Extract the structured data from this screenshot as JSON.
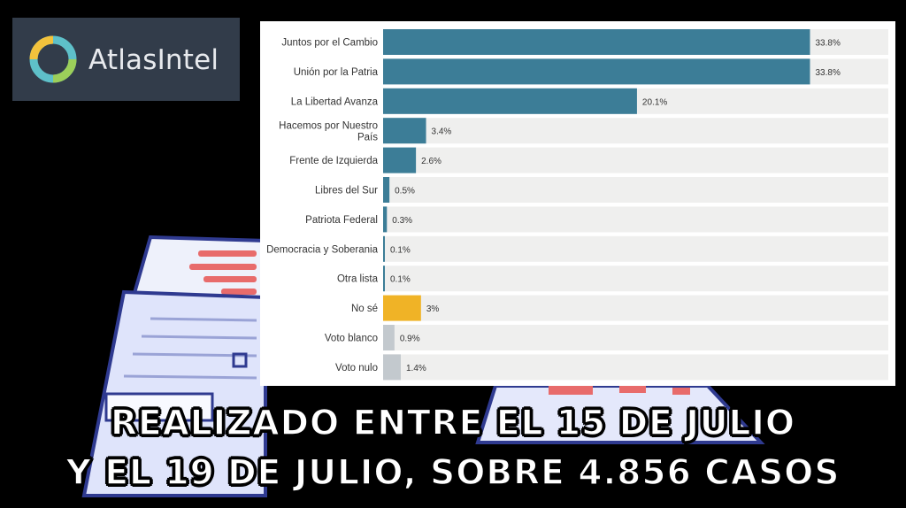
{
  "brand": {
    "name": "AtlasIntel"
  },
  "colors": {
    "primary_bar": "#3c7d97",
    "highlight_bar": "#f0b326",
    "neutral_bar": "#c3c9ce",
    "row_bg": "#efefee"
  },
  "chart_data": {
    "type": "bar",
    "orientation": "horizontal",
    "categories": [
      "Juntos por el Cambio",
      "Unión por la Patria",
      "La Libertad Avanza",
      "Hacemos por Nuestro País",
      "Frente de Izquierda",
      "Libres del Sur",
      "Patriota Federal",
      "Democracia y Soberania",
      "Otra lista",
      "No sé",
      "Voto blanco",
      "Voto nulo"
    ],
    "values": [
      33.8,
      33.8,
      20.1,
      3.4,
      2.6,
      0.5,
      0.3,
      0.1,
      0.1,
      3,
      0.9,
      1.4
    ],
    "value_labels": [
      "33.8%",
      "33.8%",
      "20.1%",
      "3.4%",
      "2.6%",
      "0.5%",
      "0.3%",
      "0.1%",
      "0.1%",
      "3%",
      "0.9%",
      "1.4%"
    ],
    "bar_colors": [
      "#3c7d97",
      "#3c7d97",
      "#3c7d97",
      "#3c7d97",
      "#3c7d97",
      "#3c7d97",
      "#3c7d97",
      "#3c7d97",
      "#3c7d97",
      "#f0b326",
      "#c3c9ce",
      "#c3c9ce"
    ],
    "xlim": [
      0,
      40
    ],
    "title": "",
    "xlabel": "",
    "ylabel": "",
    "grid": false
  },
  "caption": {
    "line1": "REALIZADO  ENTRE EL 15 DE JULIO",
    "line2": "Y EL 19 DE JULIO, SOBRE 4.856 CASOS"
  }
}
